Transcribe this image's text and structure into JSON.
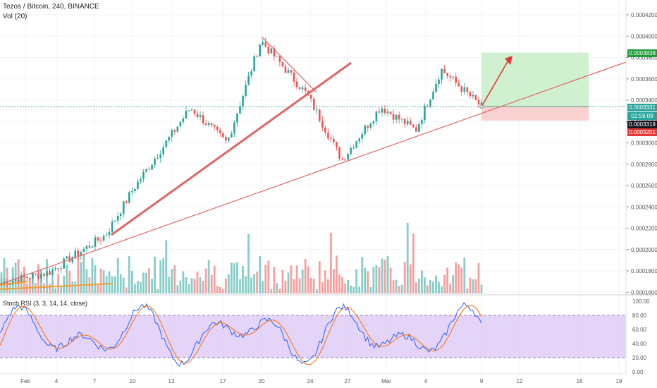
{
  "header": {
    "symbol": "Tezos / Bitcoin, 240, BINANCE",
    "volume_label": "Vol (20)"
  },
  "stoch": {
    "label": "Stoch RSI (3, 3, 14, 14, close)",
    "ticks": [
      "100.00",
      "80.00",
      "60.00",
      "40.00",
      "20.00",
      "0.00"
    ]
  },
  "price_axis": {
    "ticks": [
      "0.0004200",
      "0.0004000",
      "0.0003800",
      "0.0003600",
      "0.0003400",
      "0.0003200",
      "0.0003000",
      "0.0002800",
      "0.0002600",
      "0.0002400",
      "0.0002200",
      "0.0002000",
      "0.0001800",
      "0.0001600"
    ]
  },
  "badges": {
    "target": "0.0003838",
    "current": "0.0003331",
    "countdown": "02:59:09",
    "last_close": "0.0003319",
    "stop": "0.0003201"
  },
  "colors": {
    "up": "#26a69a",
    "down": "#ef5350",
    "trend": "#e06666",
    "target_zone": "#c8efc8",
    "stop_zone": "#f8c9c9",
    "stoch_band": "#d9c2f5"
  },
  "time_axis": {
    "labels": [
      "Feb",
      "4",
      "7",
      "10",
      "13",
      "17",
      "20",
      "24",
      "27",
      "Mar",
      "4",
      "9",
      "12",
      "16",
      "19"
    ]
  },
  "chart_data": {
    "type": "candlestick",
    "symbol": "XTZ/BTC",
    "y_range": [
      0.00016,
      0.00042
    ],
    "anchors": [
      {
        "date": "Feb 1",
        "price": 0.000168
      },
      {
        "date": "Feb 4",
        "price": 0.000178
      },
      {
        "date": "Feb 7",
        "price": 0.000213
      },
      {
        "date": "Feb 10",
        "price": 0.000257
      },
      {
        "date": "Feb 13",
        "price": 0.000332
      },
      {
        "date": "Feb 17",
        "price": 0.000299
      },
      {
        "date": "Feb 20",
        "price": 0.000395
      },
      {
        "date": "Feb 22",
        "price": 0.000344
      },
      {
        "date": "Feb 26",
        "price": 0.000283
      },
      {
        "date": "Feb 28",
        "price": 0.000333
      },
      {
        "date": "Mar 3",
        "price": 0.000311
      },
      {
        "date": "Mar 5",
        "price": 0.000368
      },
      {
        "date": "Mar 8",
        "price": 0.000333
      }
    ],
    "position": {
      "entry": 0.0003331,
      "target": 0.0003838,
      "stop": 0.0003201
    },
    "stoch_rsi_range": [
      0,
      100
    ],
    "stoch_rsi_band": [
      20,
      80
    ]
  }
}
